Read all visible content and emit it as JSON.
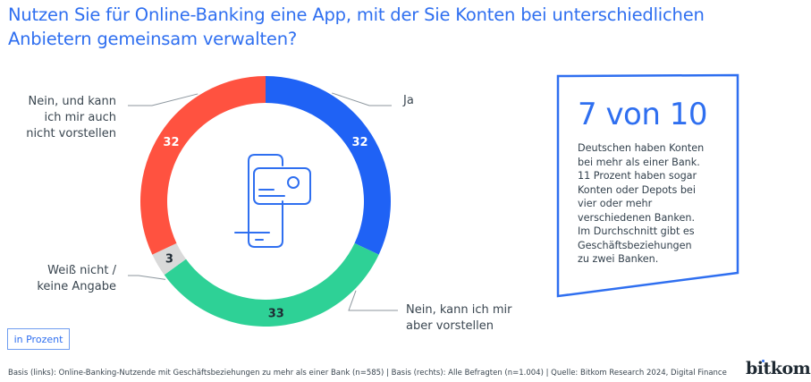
{
  "title_lines": [
    "Nutzen Sie für Online-Banking eine App, mit der Sie Konten bei unterschiedlichen",
    "Anbietern gemeinsam verwalten?"
  ],
  "chart_data": {
    "type": "pie",
    "variant": "donut",
    "title": "Nutzen Sie für Online-Banking eine App, mit der Sie Konten bei unterschiedlichen Anbietern gemeinsam verwalten?",
    "unit": "in Prozent",
    "slices": [
      {
        "label": "Ja",
        "label_lines": [
          "Ja"
        ],
        "value": 32,
        "color": "#1f62f5",
        "value_color": "#ffffff"
      },
      {
        "label": "Nein, kann ich mir aber vorstellen",
        "label_lines": [
          "Nein, kann ich mir",
          "aber vorstellen"
        ],
        "value": 33,
        "color": "#2ed196",
        "value_color": "#1f2a33"
      },
      {
        "label": "Weiß nicht / keine Angabe",
        "label_lines": [
          "Weiß nicht /",
          "keine Angabe"
        ],
        "value": 3,
        "color": "#d9d9d9",
        "value_color": "#1f2a33"
      },
      {
        "label": "Nein, und kann ich mir auch nicht vorstellen",
        "label_lines": [
          "Nein, und kann",
          "ich mir auch",
          "nicht vorstellen"
        ],
        "value": 32,
        "color": "#ff5240",
        "value_color": "#ffffff"
      }
    ],
    "center_icon": "phone-with-card-icon"
  },
  "unit_label": "in Prozent",
  "key_fact": {
    "headline": "7 von 10",
    "lines": [
      "Deutschen haben Konten",
      "bei mehr als einer Bank.",
      "11 Prozent haben sogar",
      "Konten oder Depots bei",
      "vier oder mehr",
      "verschiedenen Banken.",
      "Im Durchschnitt gibt es",
      "Geschäftsbeziehungen",
      "zu zwei Banken."
    ]
  },
  "footer": "Basis (links): Online-Banking-Nutzende mit Geschäftsbeziehungen zu mehr als einer Bank (n=585) | Basis (rechts): Alle Befragten (n=1.004) | Quelle: Bitkom Research 2024, Digital Finance",
  "logo": "bitkom",
  "colors": {
    "accent": "#2f6ff0",
    "text": "#3a4650"
  }
}
